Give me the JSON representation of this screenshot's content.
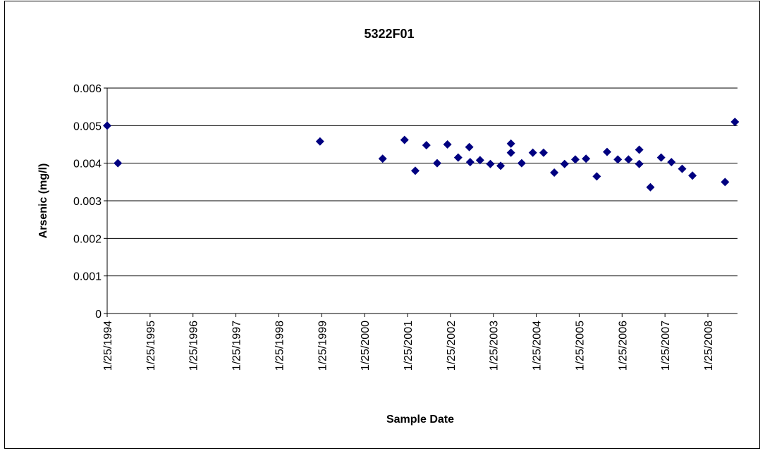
{
  "chart_data": {
    "type": "scatter",
    "title": "5322F01",
    "x_label": "Sample Date",
    "y_label": "Arsenic (mg/l)",
    "series": [
      {
        "name": "Arsenic",
        "color": "#000080",
        "x": [
          1994.07,
          1994.32,
          1999.03,
          2000.49,
          2001.0,
          2001.25,
          2001.51,
          2001.76,
          2002.0,
          2002.25,
          2002.51,
          2002.53,
          2002.76,
          2003.0,
          2003.24,
          2003.48,
          2003.48,
          2003.73,
          2003.99,
          2004.24,
          2004.49,
          2004.73,
          2004.98,
          2005.23,
          2005.48,
          2005.72,
          2005.97,
          2006.22,
          2006.47,
          2006.47,
          2006.73,
          2006.98,
          2007.22,
          2007.47,
          2007.71,
          2008.47,
          2008.7
        ],
        "values": [
          0.005,
          0.004,
          0.00458,
          0.00412,
          0.00462,
          0.0038,
          0.00448,
          0.004,
          0.0045,
          0.00415,
          0.00443,
          0.00403,
          0.00408,
          0.00398,
          0.00393,
          0.00452,
          0.00428,
          0.004,
          0.00428,
          0.00428,
          0.00375,
          0.00398,
          0.0041,
          0.00412,
          0.00365,
          0.0043,
          0.0041,
          0.0041,
          0.00436,
          0.00398,
          0.00336,
          0.00415,
          0.00403,
          0.00385,
          0.00367,
          0.0035,
          0.0051
        ]
      }
    ],
    "xlim": [
      1994.07,
      2008.76
    ],
    "xticks": [
      {
        "value": 1994.07,
        "label": "1/25/1994"
      },
      {
        "value": 1995.07,
        "label": "1/25/1995"
      },
      {
        "value": 1996.07,
        "label": "1/25/1996"
      },
      {
        "value": 1997.07,
        "label": "1/25/1997"
      },
      {
        "value": 1998.07,
        "label": "1/25/1998"
      },
      {
        "value": 1999.07,
        "label": "1/25/1999"
      },
      {
        "value": 2000.07,
        "label": "1/25/2000"
      },
      {
        "value": 2001.07,
        "label": "1/25/2001"
      },
      {
        "value": 2002.07,
        "label": "1/25/2002"
      },
      {
        "value": 2003.07,
        "label": "1/25/2003"
      },
      {
        "value": 2004.07,
        "label": "1/25/2004"
      },
      {
        "value": 2005.07,
        "label": "1/25/2005"
      },
      {
        "value": 2006.07,
        "label": "1/25/2006"
      },
      {
        "value": 2007.07,
        "label": "1/25/2007"
      },
      {
        "value": 2008.07,
        "label": "1/25/2008"
      }
    ],
    "ylim": [
      0,
      0.006
    ],
    "yticks": [
      0,
      0.001,
      0.002,
      0.003,
      0.004,
      0.005,
      0.006
    ],
    "grid": true
  }
}
